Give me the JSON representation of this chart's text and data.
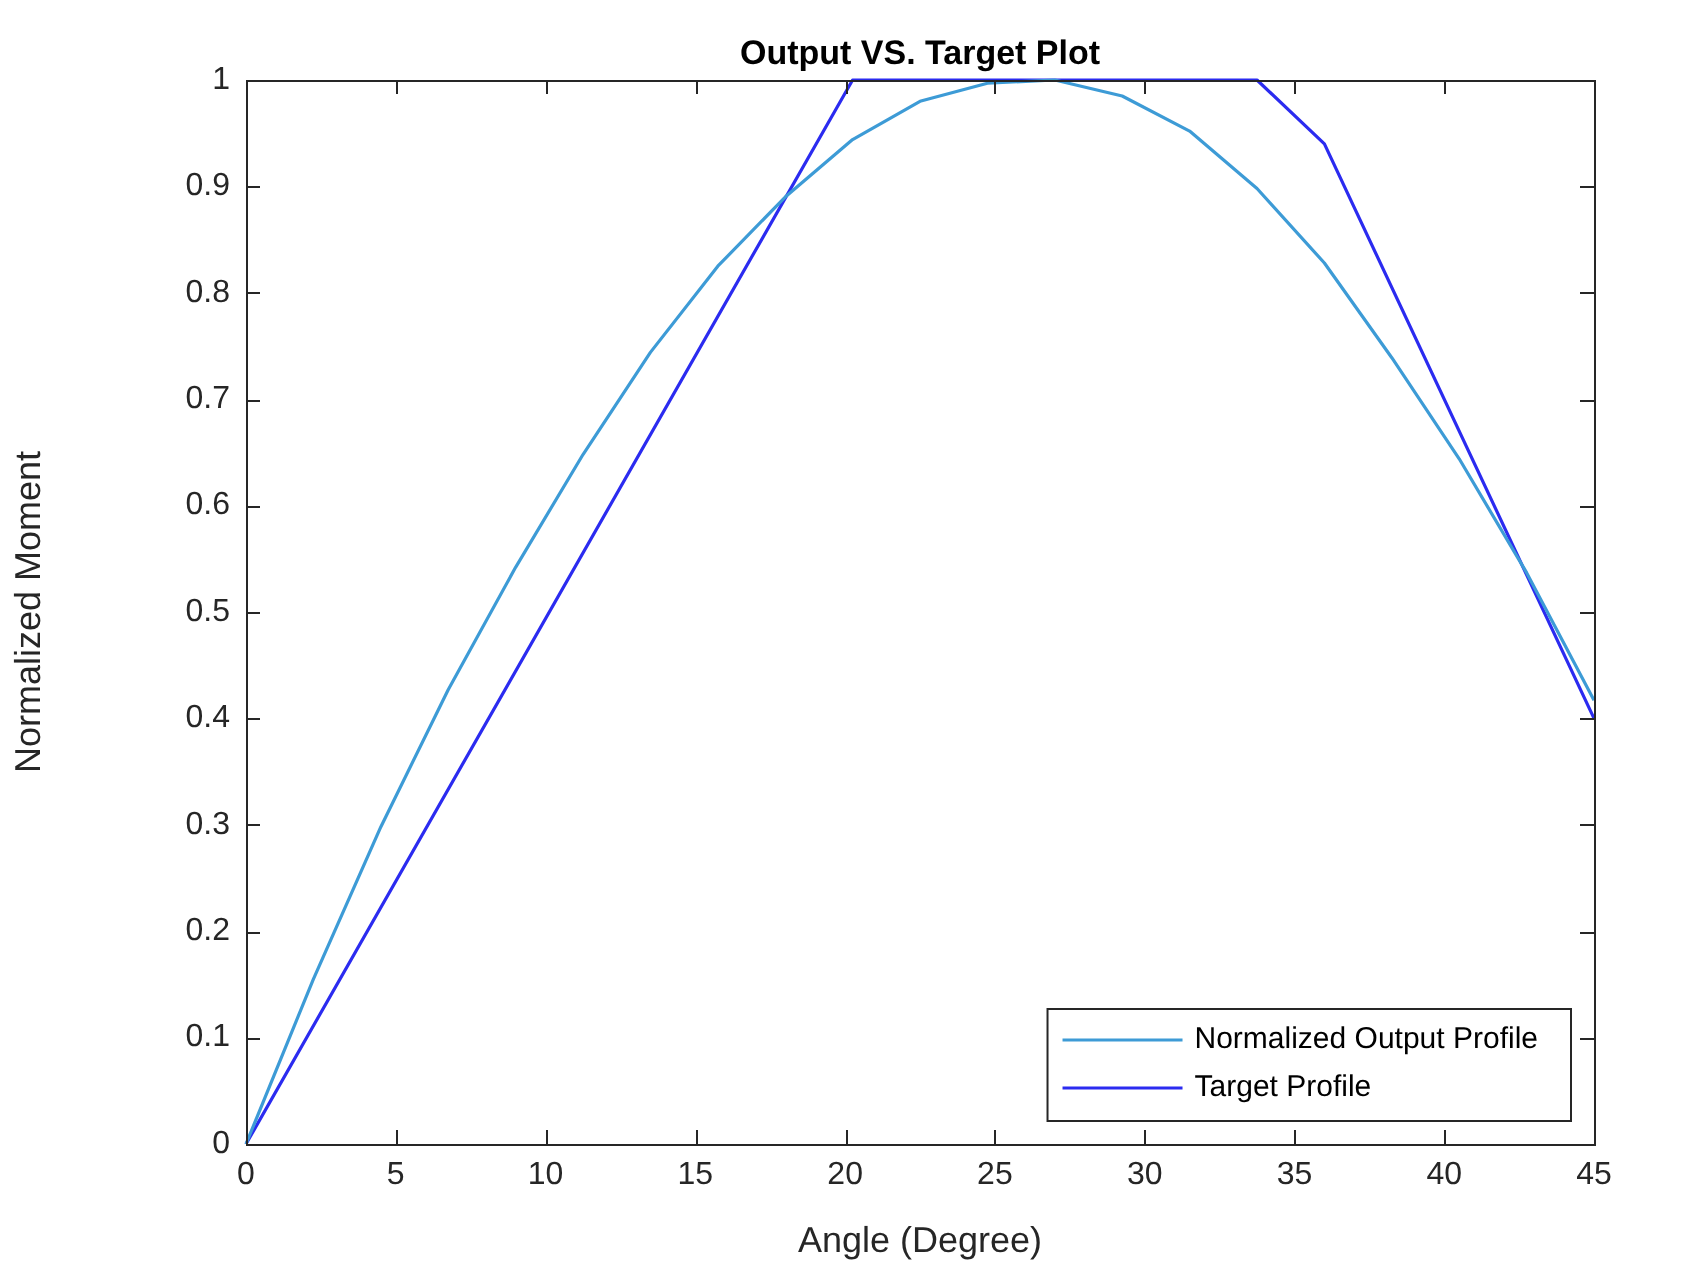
{
  "chart_data": {
    "type": "line",
    "title": "Output VS. Target Plot",
    "xlabel": "Angle (Degree)",
    "ylabel": "Normalized Moment",
    "xlim": [
      0,
      45
    ],
    "xticks": [
      0,
      5,
      10,
      15,
      20,
      25,
      30,
      35,
      40,
      45
    ],
    "ylim": [
      0,
      1
    ],
    "yticks": [
      0,
      0.1,
      0.2,
      0.3,
      0.4,
      0.5,
      0.6,
      0.7,
      0.8,
      0.9,
      1
    ],
    "grid": false,
    "legend": "bottom right",
    "marker": "none",
    "line_style": "solid",
    "series": [
      {
        "name": "Normalized Output Profile",
        "color": "#3d9bd6",
        "x": [
          0,
          2.25,
          4.5,
          6.75,
          9,
          11.25,
          13.5,
          15.75,
          18,
          20.25,
          22.5,
          24.75,
          27,
          29.25,
          31.5,
          33.75,
          36,
          38.25,
          40.5,
          42.75,
          45
        ],
        "values": [
          0,
          0.155,
          0.298,
          0.427,
          0.542,
          0.648,
          0.744,
          0.825,
          0.89,
          0.944,
          0.98,
          0.997,
          1,
          0.985,
          0.952,
          0.898,
          0.828,
          0.739,
          0.644,
          0.537,
          0.417
        ]
      },
      {
        "name": "Target Profile",
        "color": "#2b2bf0",
        "x": [
          0,
          20.25,
          33.75,
          36,
          45
        ],
        "values": [
          0,
          1,
          1,
          0.94,
          0.4
        ]
      }
    ]
  }
}
